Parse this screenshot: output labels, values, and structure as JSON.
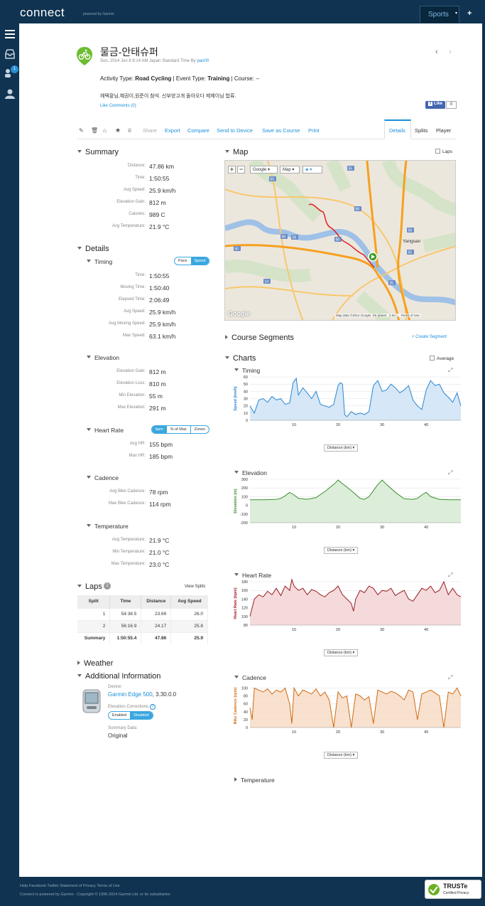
{
  "topbar": {
    "logo": "connect",
    "logo_sub": "powered by Garmin",
    "sports": "Sports",
    "plus": "+"
  },
  "activity": {
    "title": "물금-안태슈퍼",
    "date_prefix": "Sun, 2014 Jun 8 8:14 AM Japan Standard Time By",
    "user": "pan00",
    "activity_type_label": "Activity Type:",
    "activity_type": "Road Cycling",
    "event_type_label": "| Event Type:",
    "event_type": "Training",
    "course_label": "| Course:",
    "course": "--",
    "description": "헤택황님,혜권이,원준이 참석. 신부양고개 돌아오다 제제이님 합류.",
    "like_link": "Like",
    "comments_link": "Comments (0)",
    "fb_like": "Like",
    "fb_count": "0"
  },
  "toolbar": {
    "share": "Share",
    "export": "Export",
    "compare": "Compare",
    "send": "Send to Device",
    "save_course": "Save as Course",
    "print": "Print",
    "tabs": [
      "Details",
      "Splits",
      "Player"
    ]
  },
  "summary": {
    "title": "Summary",
    "rows": [
      {
        "label": "Distance:",
        "value": "47.86 km"
      },
      {
        "label": "Time:",
        "value": "1:50:55"
      },
      {
        "label": "Avg Speed:",
        "value": "25.9 km/h"
      },
      {
        "label": "Elevation Gain:",
        "value": "812 m"
      },
      {
        "label": "Calories:",
        "value": "989 C"
      },
      {
        "label": "Avg Temperature:",
        "value": "21.9 °C"
      }
    ]
  },
  "details": {
    "title": "Details",
    "timing": {
      "title": "Timing",
      "toggle": [
        "Pace",
        "Speed"
      ],
      "rows": [
        {
          "label": "Time:",
          "value": "1:50:55"
        },
        {
          "label": "Moving Time:",
          "value": "1:50:40"
        },
        {
          "label": "Elapsed Time:",
          "value": "2:06:49"
        },
        {
          "label": "Avg Speed:",
          "value": "25.9 km/h"
        },
        {
          "label": "Avg Moving Speed:",
          "value": "25.9 km/h"
        },
        {
          "label": "Max Speed:",
          "value": "63.1 km/h"
        }
      ]
    },
    "elevation": {
      "title": "Elevation",
      "rows": [
        {
          "label": "Elevation Gain:",
          "value": "812 m"
        },
        {
          "label": "Elevation Loss:",
          "value": "810 m"
        },
        {
          "label": "Min Elevation:",
          "value": "55 m"
        },
        {
          "label": "Max Elevation:",
          "value": "291 m"
        }
      ]
    },
    "heart_rate": {
      "title": "Heart Rate",
      "toggle": [
        "bpm",
        "% of Max",
        "Zones"
      ],
      "rows": [
        {
          "label": "Avg HR:",
          "value": "155 bpm"
        },
        {
          "label": "Max HR:",
          "value": "185 bpm"
        }
      ]
    },
    "cadence": {
      "title": "Cadence",
      "rows": [
        {
          "label": "Avg Bike Cadence:",
          "value": "78 rpm"
        },
        {
          "label": "Max Bike Cadence:",
          "value": "114 rpm"
        }
      ]
    },
    "temperature": {
      "title": "Temperature",
      "rows": [
        {
          "label": "Avg Temperature:",
          "value": "21.9 °C"
        },
        {
          "label": "Min Temperature:",
          "value": "21.0 °C"
        },
        {
          "label": "Max Temperature:",
          "value": "23.0 °C"
        }
      ]
    }
  },
  "laps": {
    "title": "Laps",
    "count": "2",
    "view_splits": "View Splits",
    "headers": [
      "Split",
      "Time",
      "Distance",
      "Avg Speed"
    ],
    "rows": [
      [
        "1",
        "54:38.5",
        "23.69",
        "26.0"
      ],
      [
        "2",
        "56:16.9",
        "24.17",
        "25.8"
      ],
      [
        "Summary",
        "1:50:55.4",
        "47.86",
        "25.9"
      ]
    ]
  },
  "weather": {
    "title": "Weather"
  },
  "additional": {
    "title": "Additional Information",
    "device_label": "Device:",
    "device_name": "Garmin Edge 500",
    "device_version": ", 3.30.0.0",
    "elev_corr_label": "Elevation Corrections",
    "elev_toggle": [
      "Enabled",
      "Disabled"
    ],
    "summary_label": "Summary Data:",
    "summary_value": "Original"
  },
  "map": {
    "title": "Map",
    "laps": "Laps",
    "google_btn": "Google",
    "map_btn": "Map",
    "attribution": "Map data ©2014 Google, SK planet",
    "scale": "2 km",
    "terms": "Terms of Use",
    "places": [
      "Yangsan"
    ],
    "road_numbers": [
      "55",
      "60",
      "58",
      "55",
      "88",
      "35",
      "60",
      "88",
      "14",
      "58",
      "58"
    ]
  },
  "course_segments": {
    "title": "Course Segments",
    "create": "+ Create Segment"
  },
  "charts": {
    "title": "Charts",
    "average": "Average",
    "distance_select": "Distance (km)",
    "temperature_title": "Temperature"
  },
  "chart_data": [
    {
      "type": "area",
      "title": "Timing",
      "xlabel": "",
      "ylabel": "Speed (km/h)",
      "xlim": [
        0,
        47.86
      ],
      "ylim": [
        0,
        60
      ],
      "xticks": [
        10,
        20,
        30,
        40
      ],
      "yticks": [
        0,
        10,
        20,
        30,
        40,
        50,
        60
      ],
      "color": "#2a86d1",
      "fill": "#cfe3f6",
      "x": [
        0,
        1,
        2,
        3,
        4,
        5,
        6,
        7,
        8,
        9,
        9.8,
        10.5,
        11,
        12,
        13,
        14,
        15,
        16,
        17,
        18,
        19,
        20,
        20.5,
        21,
        21.5,
        22,
        23,
        24,
        25,
        26,
        27,
        28,
        29,
        30,
        31,
        32,
        33,
        34,
        35,
        36,
        37,
        38,
        39,
        40,
        41,
        42,
        43,
        44,
        45,
        46,
        47,
        47.86
      ],
      "y": [
        20,
        10,
        28,
        30,
        25,
        33,
        28,
        30,
        22,
        24,
        52,
        58,
        35,
        45,
        38,
        30,
        40,
        22,
        20,
        18,
        22,
        48,
        52,
        50,
        8,
        5,
        12,
        8,
        10,
        8,
        12,
        48,
        55,
        40,
        42,
        50,
        45,
        38,
        42,
        48,
        28,
        20,
        15,
        42,
        55,
        48,
        50,
        38,
        32,
        25,
        38,
        20
      ]
    },
    {
      "type": "area",
      "title": "Elevation",
      "xlabel": "",
      "ylabel": "Elevation (m)",
      "xlim": [
        0,
        47.86
      ],
      "ylim": [
        -200,
        300
      ],
      "xticks": [
        10,
        20,
        30,
        40
      ],
      "yticks": [
        -200,
        -100,
        0,
        100,
        200,
        300
      ],
      "color": "#3b8f2e",
      "fill": "#d6ebd2",
      "x": [
        0,
        3,
        6,
        7,
        8,
        9,
        10,
        11,
        13,
        15,
        17,
        19,
        20,
        21,
        23,
        25,
        26,
        27,
        28,
        29,
        30,
        31,
        33,
        35,
        37,
        38,
        39,
        40,
        41,
        43,
        45,
        47.86
      ],
      "y": [
        65,
        65,
        70,
        80,
        110,
        150,
        120,
        80,
        70,
        90,
        160,
        240,
        291,
        250,
        170,
        80,
        70,
        100,
        170,
        240,
        291,
        240,
        150,
        75,
        70,
        80,
        120,
        150,
        100,
        70,
        65,
        65
      ]
    },
    {
      "type": "line",
      "title": "Heart Rate",
      "xlabel": "",
      "ylabel": "Heart Rate (bpm)",
      "xlim": [
        0,
        47.86
      ],
      "ylim": [
        80,
        180
      ],
      "xticks": [
        10,
        20,
        30,
        40
      ],
      "yticks": [
        80,
        100,
        120,
        140,
        160,
        180
      ],
      "color": "#9b1c23",
      "fill": "#f2d3d3",
      "x": [
        0,
        1,
        2,
        3,
        4,
        5,
        6,
        7,
        8,
        9,
        9.5,
        10,
        11,
        12,
        13,
        14,
        15,
        16,
        17,
        18,
        19,
        20,
        21,
        22,
        23,
        23.5,
        24,
        25,
        26,
        27,
        28,
        29,
        30,
        31,
        32,
        33,
        34,
        35,
        36,
        37,
        38,
        39,
        40,
        41,
        42,
        43,
        44,
        45,
        46,
        47,
        47.86
      ],
      "y": [
        100,
        140,
        150,
        145,
        158,
        150,
        165,
        148,
        170,
        160,
        185,
        170,
        160,
        165,
        150,
        162,
        158,
        150,
        145,
        155,
        160,
        170,
        150,
        140,
        130,
        112,
        140,
        160,
        155,
        170,
        165,
        150,
        160,
        158,
        165,
        148,
        155,
        160,
        140,
        135,
        150,
        165,
        160,
        170,
        155,
        160,
        180,
        150,
        165,
        150,
        145
      ]
    },
    {
      "type": "line",
      "title": "Cadence",
      "xlabel": "",
      "ylabel": "Bike Cadence (rpm)",
      "xlim": [
        0,
        47.86
      ],
      "ylim": [
        0,
        110
      ],
      "xticks": [
        10,
        20,
        30,
        40
      ],
      "yticks": [
        0,
        20,
        40,
        60,
        80,
        100
      ],
      "color": "#d06a10",
      "fill": "#f7dcc5",
      "x": [
        0,
        0.5,
        1,
        2,
        3,
        4,
        5,
        6,
        7,
        8,
        9,
        9.5,
        10,
        11,
        12,
        13,
        14,
        15,
        16,
        17,
        18,
        19,
        20,
        21,
        22,
        23,
        24,
        25,
        26,
        27,
        28,
        29,
        30,
        31,
        32,
        33,
        34,
        35,
        36,
        37,
        38,
        39,
        40,
        41,
        42,
        43,
        44,
        45,
        46,
        47,
        47.86
      ],
      "y": [
        50,
        20,
        100,
        95,
        90,
        98,
        85,
        95,
        90,
        100,
        60,
        10,
        100,
        80,
        95,
        90,
        85,
        98,
        80,
        90,
        70,
        0,
        90,
        75,
        80,
        0,
        85,
        80,
        70,
        78,
        10,
        95,
        90,
        85,
        92,
        88,
        80,
        70,
        95,
        90,
        20,
        85,
        90,
        95,
        88,
        80,
        0,
        90,
        85,
        100,
        80
      ]
    }
  ],
  "footer": {
    "links": "Help Facebook Twitter Statement of Privacy Terms of Use",
    "copyright": "Connect is powered by Garmin - Copyright © 1996-2014 Garmin Ltd. or its subsidiaries",
    "truste": "TRUSTe",
    "truste_sub": "Certified Privacy"
  }
}
